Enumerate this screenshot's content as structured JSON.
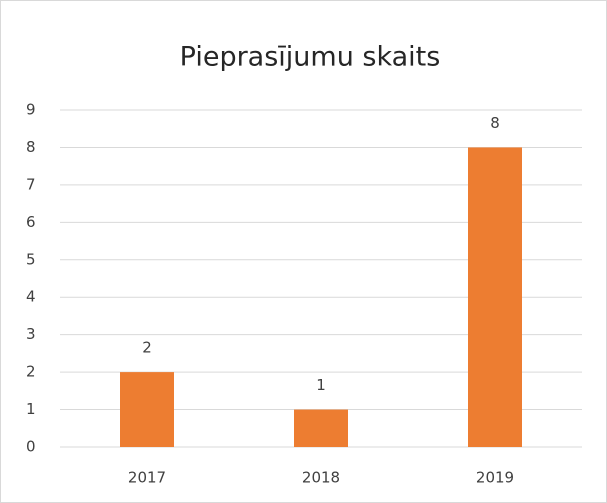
{
  "chart_data": {
    "type": "bar",
    "title": "Pieprasījumu skaits",
    "categories": [
      "2017",
      "2018",
      "2019"
    ],
    "values": [
      2,
      1,
      8
    ],
    "color": "#ed7d31",
    "ylim": [
      0,
      9
    ],
    "yticks": [
      0,
      1,
      2,
      3,
      4,
      5,
      6,
      7,
      8,
      9
    ],
    "grid": true
  }
}
